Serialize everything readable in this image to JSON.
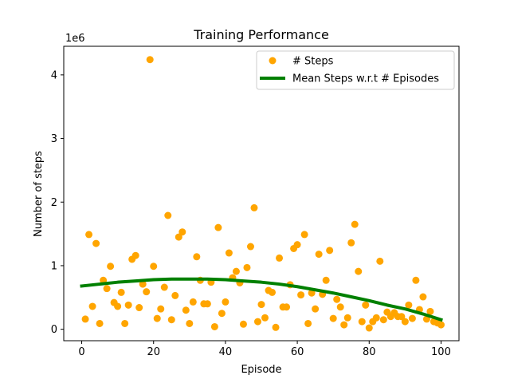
{
  "chart_data": {
    "type": "scatter",
    "title": "Training Performance",
    "xlabel": "Episode",
    "ylabel": "Number of steps",
    "y_scale_label": "1e6",
    "xlim": [
      -5,
      105
    ],
    "ylim": [
      -0.18,
      4.45
    ],
    "x_ticks": [
      0,
      20,
      40,
      60,
      80,
      100
    ],
    "y_ticks": [
      0,
      1,
      2,
      3,
      4
    ],
    "grid": false,
    "legend_position": "top-right",
    "series": [
      {
        "name": "# Steps",
        "kind": "scatter",
        "color": "#ffa500",
        "x": [
          1,
          2,
          3,
          4,
          5,
          6,
          7,
          8,
          9,
          10,
          11,
          12,
          13,
          14,
          15,
          16,
          17,
          18,
          19,
          20,
          21,
          22,
          23,
          24,
          25,
          26,
          27,
          28,
          29,
          30,
          31,
          32,
          33,
          34,
          35,
          36,
          37,
          38,
          39,
          40,
          41,
          42,
          43,
          44,
          45,
          46,
          47,
          48,
          49,
          50,
          51,
          52,
          53,
          54,
          55,
          56,
          57,
          58,
          59,
          60,
          61,
          62,
          63,
          64,
          65,
          66,
          67,
          68,
          69,
          70,
          71,
          72,
          73,
          74,
          75,
          76,
          77,
          78,
          79,
          80,
          81,
          82,
          83,
          84,
          85,
          86,
          87,
          88,
          89,
          90,
          91,
          92,
          93,
          94,
          95,
          96,
          97,
          98,
          99,
          100
        ],
        "y": [
          0.16,
          1.49,
          0.36,
          1.35,
          0.09,
          0.77,
          0.64,
          0.99,
          0.42,
          0.36,
          0.58,
          0.09,
          0.38,
          1.1,
          1.16,
          0.34,
          0.71,
          0.59,
          4.24,
          0.99,
          0.17,
          0.32,
          0.66,
          1.79,
          0.15,
          0.53,
          1.45,
          1.53,
          0.3,
          0.09,
          0.43,
          1.14,
          0.77,
          0.4,
          0.4,
          0.74,
          0.04,
          1.6,
          0.25,
          0.43,
          1.2,
          0.81,
          0.91,
          0.73,
          0.08,
          0.97,
          1.3,
          1.91,
          0.12,
          0.39,
          0.18,
          0.61,
          0.58,
          0.03,
          1.12,
          0.35,
          0.35,
          0.7,
          1.27,
          1.33,
          0.54,
          1.49,
          0.09,
          0.57,
          0.32,
          1.18,
          0.55,
          0.77,
          1.24,
          0.17,
          0.47,
          0.35,
          0.07,
          0.18,
          1.36,
          1.65,
          0.91,
          0.12,
          0.38,
          0.02,
          0.12,
          0.18,
          1.07,
          0.15,
          0.27,
          0.2,
          0.26,
          0.2,
          0.2,
          0.12,
          0.38,
          0.17,
          0.77,
          0.31,
          0.51,
          0.16,
          0.28,
          0.12,
          0.1,
          0.07
        ]
      },
      {
        "name": "Mean Steps w.r.t # Episodes",
        "kind": "line",
        "color": "#008000",
        "x": [
          0,
          5,
          10,
          15,
          20,
          25,
          30,
          35,
          40,
          45,
          50,
          55,
          60,
          65,
          70,
          75,
          80,
          85,
          90,
          95,
          100
        ],
        "y": [
          0.68,
          0.71,
          0.74,
          0.76,
          0.78,
          0.79,
          0.79,
          0.79,
          0.78,
          0.76,
          0.74,
          0.71,
          0.67,
          0.62,
          0.57,
          0.51,
          0.45,
          0.38,
          0.32,
          0.24,
          0.15
        ]
      }
    ]
  }
}
